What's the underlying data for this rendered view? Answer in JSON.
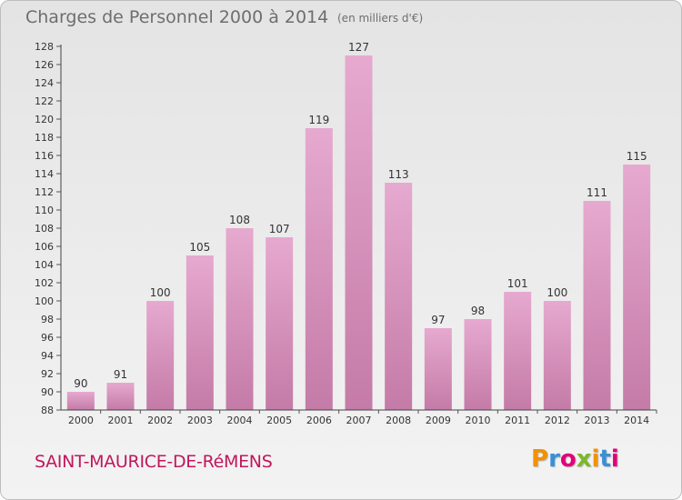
{
  "header": {
    "title": "Charges de Personnel 2000 à 2014",
    "subtitle": "(en milliers d'€)"
  },
  "footer": {
    "commune": "SAINT-MAURICE-DE-RéMENS",
    "logo": "Proxiti"
  },
  "colors": {
    "bar_top": "#e6a9cf",
    "bar_bottom": "#c47ba7",
    "commune_text": "#c0185c",
    "logo_letters": [
      "#f39200",
      "#3a8fd6",
      "#e2007a",
      "#7cb928",
      "#f39200",
      "#3a8fd6",
      "#e2007a"
    ]
  },
  "chart_data": {
    "type": "bar",
    "categories": [
      "2000",
      "2001",
      "2002",
      "2003",
      "2004",
      "2005",
      "2006",
      "2007",
      "2008",
      "2009",
      "2010",
      "2011",
      "2012",
      "2013",
      "2014"
    ],
    "values": [
      90,
      91,
      100,
      105,
      108,
      107,
      119,
      127,
      113,
      97,
      98,
      101,
      100,
      111,
      115
    ],
    "ylim": [
      88,
      128
    ],
    "ytick_step": 2,
    "grid": false,
    "legend": "none"
  }
}
